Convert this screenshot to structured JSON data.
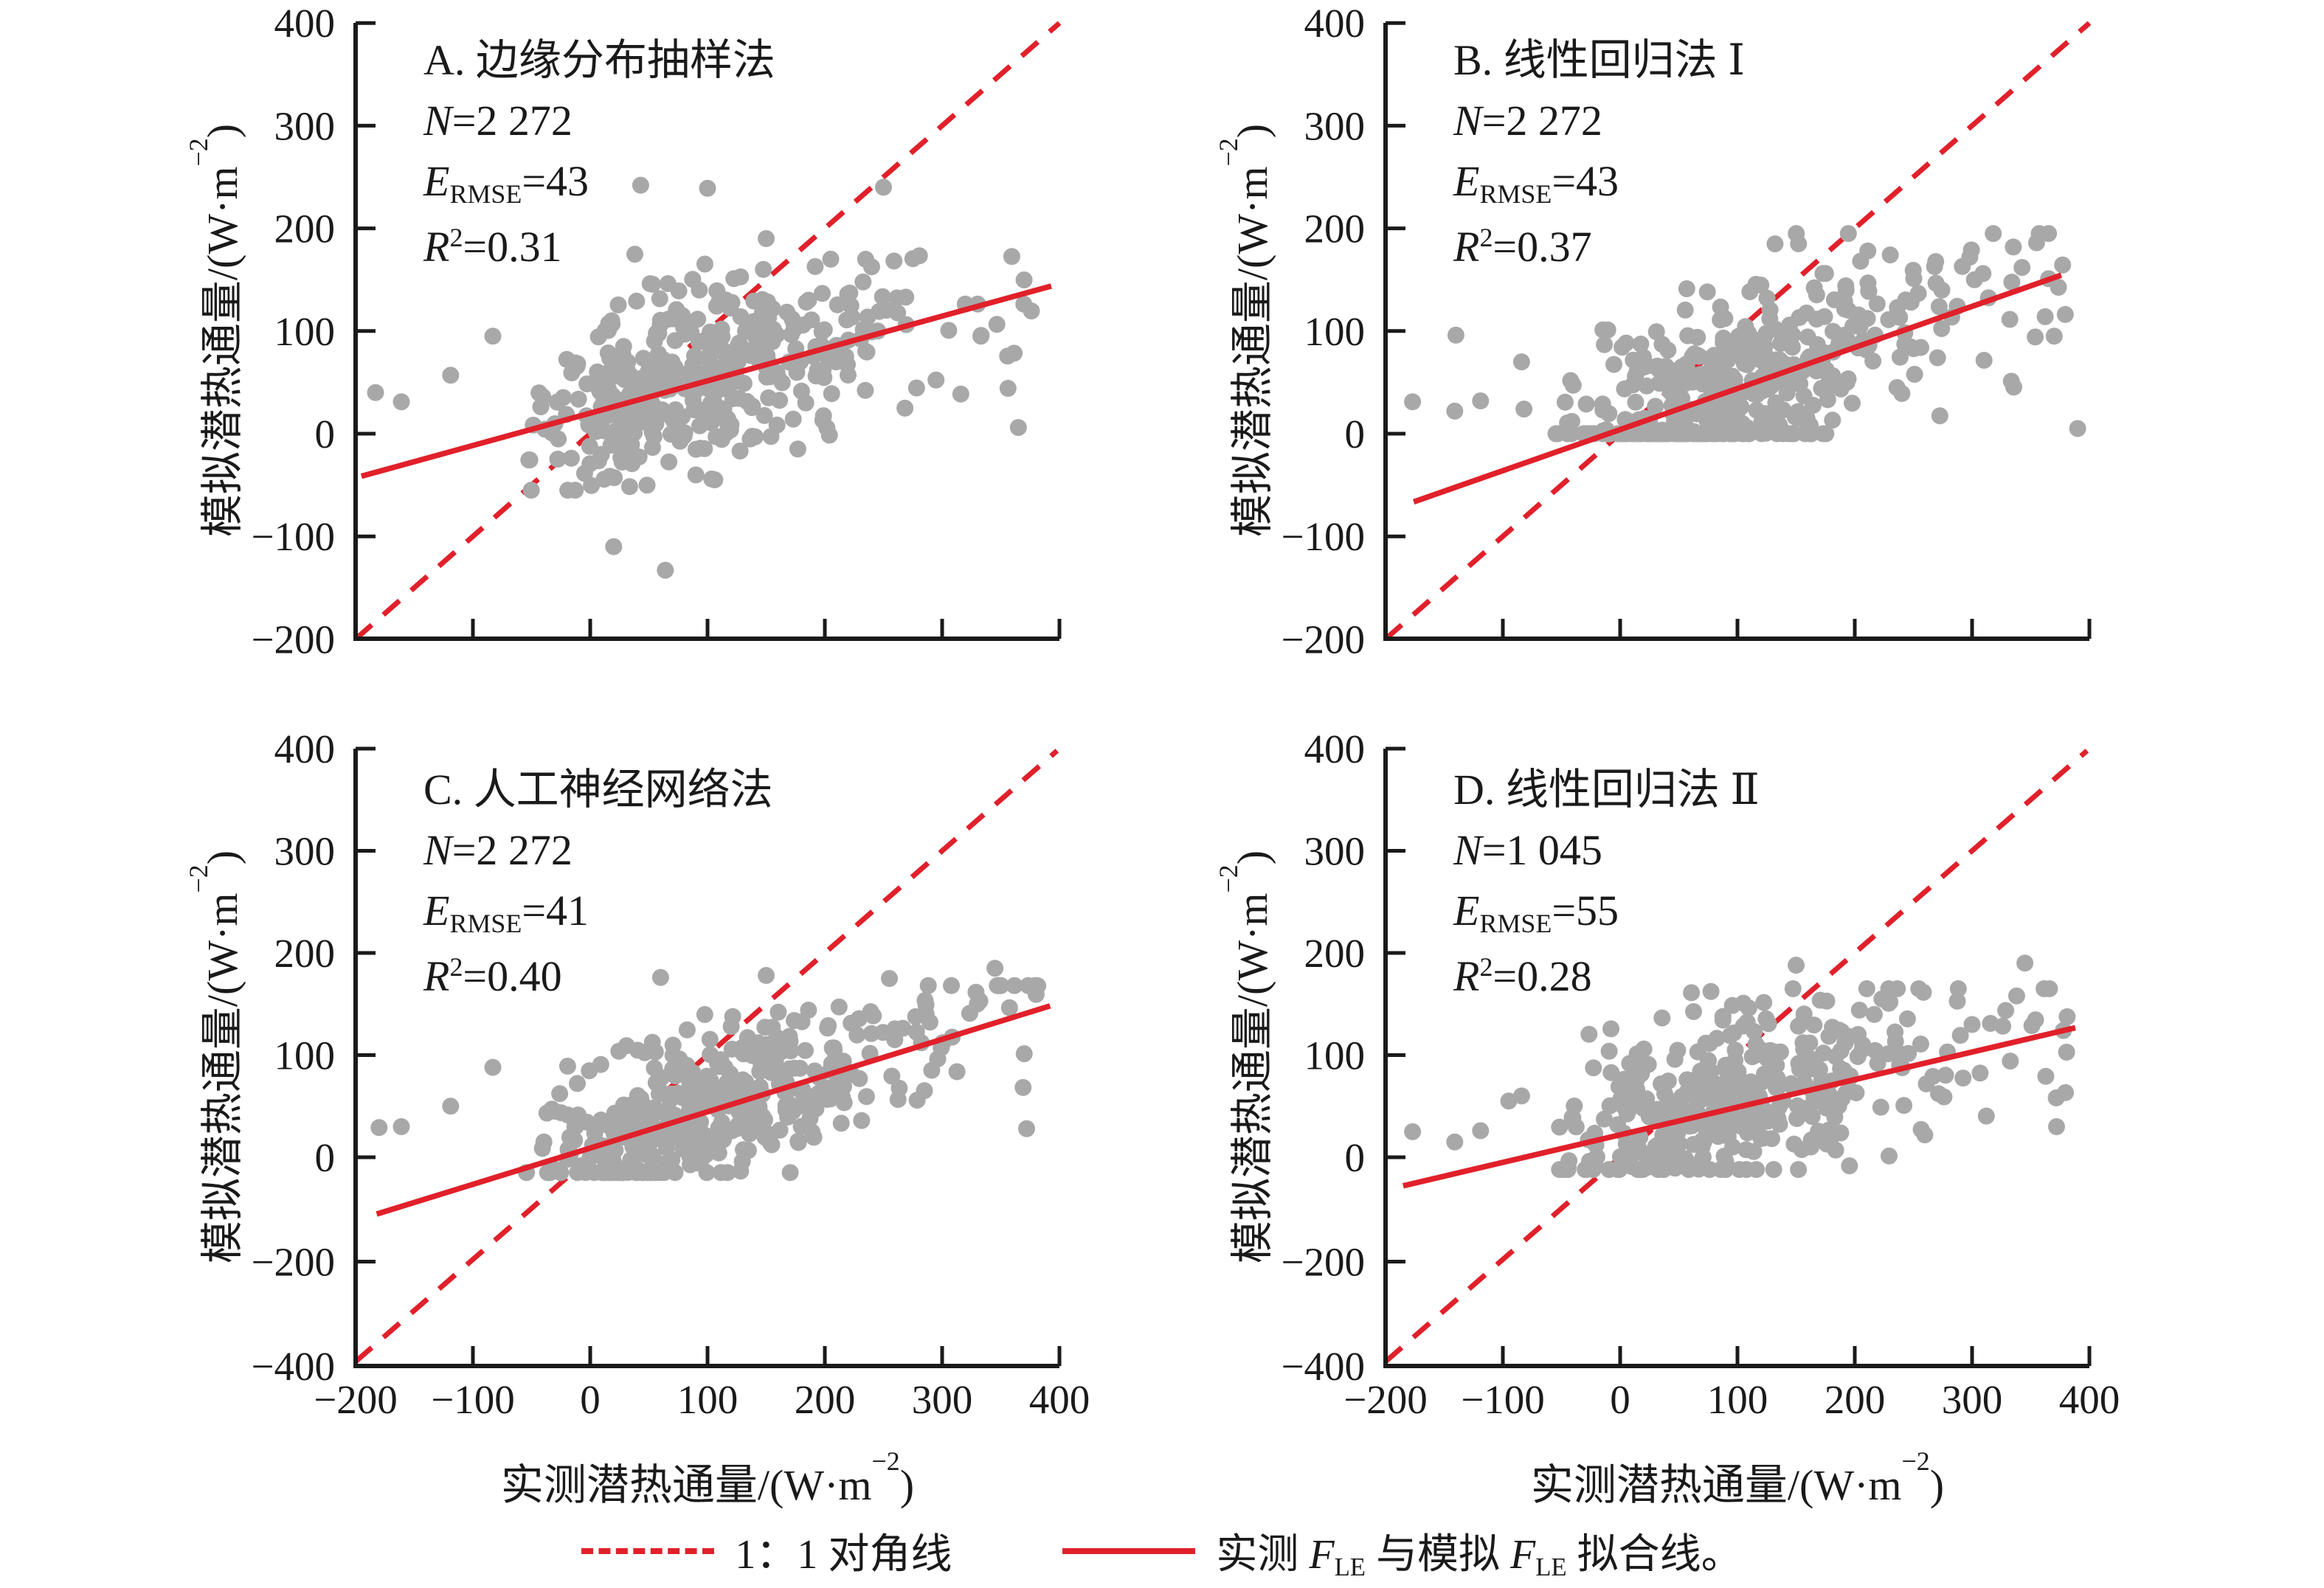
{
  "chart_data": {
    "type": "scatter",
    "x_axis": {
      "range": [
        -200,
        400
      ],
      "ticks": [
        -200,
        -100,
        0,
        100,
        200,
        300,
        400
      ],
      "title_prefix": "实测潜热通量/(W·m",
      "title_sup": "−2",
      "title_suffix": ")"
    },
    "y_axis": {
      "title_prefix": "模拟潜热通量/(W·m",
      "title_sup": "−2",
      "title_suffix": ")"
    },
    "point_color": "#a8a8a8",
    "line_color": "#e1202a",
    "axis_color": "#1a1a1a",
    "legend": {
      "diagonal_label": "1：1 对角线",
      "fit_p1": "实测 ",
      "fit_f1": "F",
      "fit_s1": "LE",
      "fit_p2": " 与模拟 ",
      "fit_f2": "F",
      "fit_s2": "LE",
      "fit_p3": " 拟合线。"
    },
    "panels": [
      {
        "id": "A",
        "title": "A. 边缘分布抽样法",
        "stats": {
          "n_label": "N",
          "n_value": "=2 272",
          "e_label": "E",
          "e_sub": "RMSE",
          "e_value": "=43",
          "r_label": "R",
          "r_sup": "2",
          "r_value": "=0.31"
        },
        "y_range": [
          -200,
          400
        ],
        "y_ticks": [
          400,
          300,
          200,
          100,
          0,
          -100,
          -200
        ],
        "broken_negative_scale": false,
        "diagonal": {
          "x1": -200,
          "x2": 400
        },
        "fit": {
          "slope": 0.315,
          "intercept": 20,
          "x1": -195,
          "x2": 393
        },
        "cloud": {
          "n": 430,
          "seed": 11,
          "x_mean": 85,
          "x_sd": 72,
          "x_min": -55,
          "x_max": 385,
          "p_right": 0.08,
          "slope": 0.315,
          "intercept": 22,
          "noise_sd": 45,
          "y_min": -55,
          "y_max": 185,
          "clamp_zero": false
        },
        "outliers": [
          [
            20,
            -110
          ],
          [
            64,
            -133
          ],
          [
            43,
            242
          ],
          [
            100,
            239
          ],
          [
            250,
            240
          ],
          [
            -161,
            31
          ],
          [
            -119,
            57
          ],
          [
            -83,
            95
          ],
          [
            365,
            6
          ],
          [
            333,
            95
          ],
          [
            -183,
            40
          ],
          [
            150,
            190
          ],
          [
            205,
            170
          ]
        ]
      },
      {
        "id": "B",
        "title": "B. 线性回归法 Ⅰ",
        "stats": {
          "n_label": "N",
          "n_value": "=2 272",
          "e_label": "E",
          "e_sub": "RMSE",
          "e_value": "=43",
          "r_label": "R",
          "r_sup": "2",
          "r_value": "=0.37"
        },
        "y_range": [
          -200,
          400
        ],
        "y_ticks": [
          400,
          300,
          200,
          100,
          0,
          -100,
          -200
        ],
        "broken_negative_scale": false,
        "diagonal": {
          "x1": -200,
          "x2": 400
        },
        "fit": {
          "slope": 0.4,
          "intercept": 4,
          "x1": -176,
          "x2": 376
        },
        "cloud": {
          "n": 440,
          "seed": 22,
          "x_mean": 85,
          "x_sd": 72,
          "x_min": -55,
          "x_max": 385,
          "p_right": 0.12,
          "slope": 0.4,
          "intercept": 4,
          "noise_sd": 46,
          "y_min": -5,
          "y_max": 195,
          "clamp_zero": true
        },
        "outliers": [
          [
            -177,
            31
          ],
          [
            -141,
            22
          ],
          [
            -119,
            32
          ],
          [
            -84,
            70
          ],
          [
            -82,
            24
          ],
          [
            -140,
            96
          ],
          [
            355,
            186
          ],
          [
            390,
            5
          ],
          [
            302,
            150
          ],
          [
            152,
            185
          ],
          [
            205,
            168
          ],
          [
            248,
            128
          ],
          [
            370,
            95
          ]
        ]
      },
      {
        "id": "C",
        "title": "C. 人工神经网络法",
        "stats": {
          "n_label": "N",
          "n_value": "=2 272",
          "e_label": "E",
          "e_sub": "RMSE",
          "e_value": "=41",
          "r_label": "R",
          "r_sup": "2",
          "r_value": "=0.40"
        },
        "y_range": [
          -400,
          400
        ],
        "y_ticks": [
          400,
          300,
          200,
          100,
          0,
          -200,
          -400
        ],
        "broken_negative_scale": true,
        "diagonal": {
          "x1": -200,
          "x2": 398
        },
        "fit": {
          "slope": 0.355,
          "intercept": 9,
          "x1": -182,
          "x2": 392
        },
        "cloud": {
          "n": 430,
          "seed": 33,
          "x_mean": 85,
          "x_sd": 72,
          "x_min": -55,
          "x_max": 385,
          "p_right": 0.1,
          "slope": 0.355,
          "intercept": 10,
          "noise_sd": 37,
          "y_min": -15,
          "y_max": 168,
          "clamp_zero": false
        },
        "outliers": [
          [
            -161,
            30
          ],
          [
            -119,
            50
          ],
          [
            -83,
            88
          ],
          [
            345,
            185
          ],
          [
            255,
            175
          ],
          [
            372,
            28
          ],
          [
            150,
            178
          ],
          [
            60,
            176
          ],
          [
            -180,
            29
          ],
          [
            330,
            150
          ]
        ]
      },
      {
        "id": "D",
        "title": "D. 线性回归法 Ⅱ",
        "stats": {
          "n_label": "N",
          "n_value": "=1 045",
          "e_label": "E",
          "e_sub": "RMSE",
          "e_value": "=55",
          "r_label": "R",
          "r_sup": "2",
          "r_value": "=0.28"
        },
        "y_range": [
          -400,
          400
        ],
        "y_ticks": [
          400,
          300,
          200,
          100,
          0,
          -200,
          -400
        ],
        "broken_negative_scale": true,
        "diagonal": {
          "x1": -200,
          "x2": 398
        },
        "fit": {
          "slope": 0.27,
          "intercept": 22,
          "x1": -185,
          "x2": 388
        },
        "cloud": {
          "n": 400,
          "seed": 44,
          "x_mean": 85,
          "x_sd": 70,
          "x_min": -55,
          "x_max": 385,
          "p_right": 0.12,
          "slope": 0.27,
          "intercept": 28,
          "noise_sd": 44,
          "y_min": -12,
          "y_max": 165,
          "clamp_zero": false
        },
        "outliers": [
          [
            -177,
            25
          ],
          [
            -141,
            15
          ],
          [
            -119,
            26
          ],
          [
            -84,
            60
          ],
          [
            345,
            190
          ],
          [
            372,
            30
          ],
          [
            150,
            188
          ],
          [
            300,
            130
          ],
          [
            -95,
            55
          ],
          [
            338,
            158
          ]
        ]
      }
    ]
  }
}
